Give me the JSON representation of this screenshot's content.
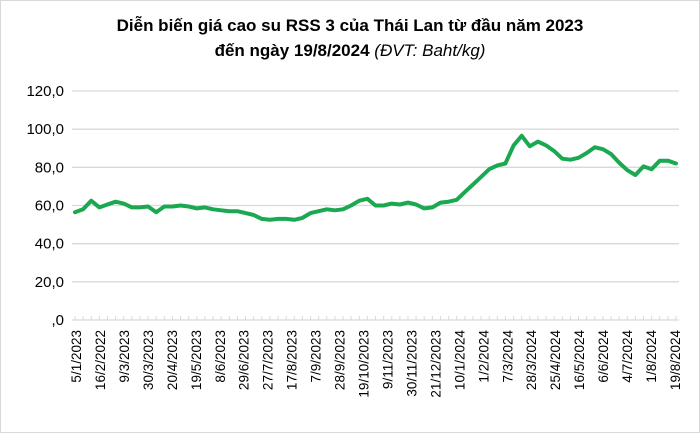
{
  "chart_data": {
    "type": "line",
    "title": "Diễn biến giá cao su RSS 3 của Thái Lan từ đầu năm 2023",
    "title_line2": "đến ngày 19/8/2024",
    "unit_note": "(ĐVT: Baht/kg)",
    "xlabel": "",
    "ylabel": "",
    "ylim": [
      0,
      120
    ],
    "yticks": [
      "120,0",
      "100,0",
      "80,0",
      "60,0",
      "40,0",
      "20,0",
      ",0"
    ],
    "grid": true,
    "legend": "none",
    "line_color": "#1aa850",
    "x_tick_labels": [
      "5/1/2023",
      "16/2/2022",
      "9/3/2023",
      "30/3/2023",
      "20/4/2023",
      "19/5/2023",
      "8/6/2023",
      "29/6/2023",
      "27/7/2023",
      "17/8/2023",
      "7/9/2023",
      "28/9/2023",
      "19/10/2023",
      "9/11/2023",
      "30/11/2023",
      "21/12/2023",
      "10/1/2024",
      "1/2/2024",
      "7/3/2024",
      "28/3/2024",
      "25/4/2024",
      "16/5/2024",
      "6/6/2024",
      "4/7/2024",
      "1/8/2024",
      "19/8/2024"
    ],
    "series": [
      {
        "name": "RSS 3",
        "values": [
          56.5,
          58,
          62.5,
          59,
          60.5,
          62,
          61,
          59,
          59,
          59.5,
          56.5,
          59.5,
          59.5,
          60,
          59.5,
          58.5,
          59,
          58,
          57.5,
          57,
          57,
          56,
          55,
          53,
          52.5,
          53,
          53,
          52.5,
          53.5,
          56,
          57,
          58,
          57.5,
          58,
          60,
          62.5,
          63.5,
          60,
          60,
          61,
          60.5,
          61.5,
          60.5,
          58.5,
          59,
          61.5,
          62,
          63,
          67,
          71,
          75,
          79,
          81,
          82,
          91.5,
          96.5,
          91,
          93.5,
          91.5,
          88.5,
          84.5,
          84,
          85,
          87.5,
          90.5,
          89.5,
          87,
          82.5,
          78.5,
          76,
          80.5,
          79,
          83.5,
          83.5,
          82
        ]
      }
    ]
  }
}
